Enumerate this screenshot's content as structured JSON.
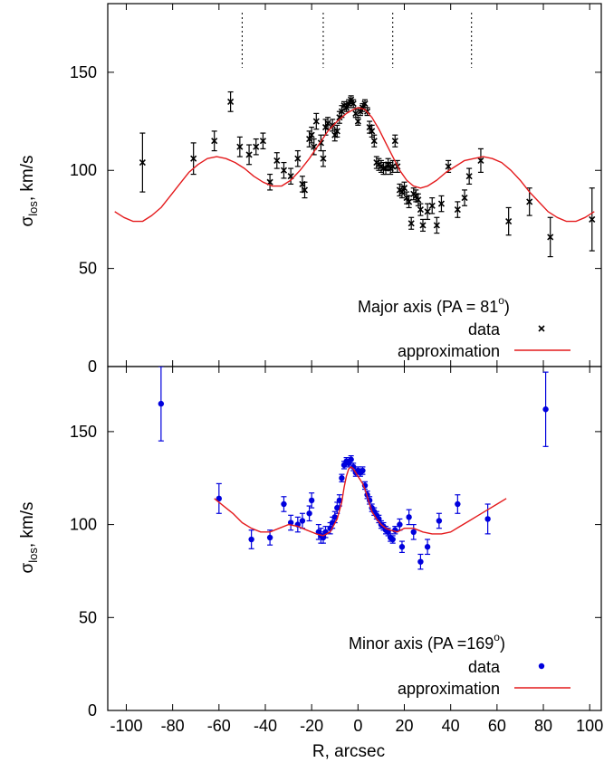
{
  "chart_data": [
    {
      "type": "scatter",
      "panel": "top",
      "title": "",
      "xlabel": "",
      "ylabel": "σ_los,  km/s",
      "xlim": [
        -108,
        105
      ],
      "ylim": [
        0,
        185
      ],
      "yticks": [
        "0",
        "50",
        "100",
        "150"
      ],
      "grid": false,
      "legend": {
        "position": "bottom-right",
        "title": "Major axis (PA = 81",
        "title_sup": "o",
        "title_end": ")",
        "entries": [
          "data",
          "approximation"
        ]
      },
      "vertical_dotted_lines_x": [
        -50,
        -15,
        15,
        49
      ],
      "data_color": "#000000",
      "model_color": "#e41a1c",
      "series": [
        {
          "name": "data",
          "marker": "cross",
          "points": [
            [
              -93,
              104,
              15
            ],
            [
              -71,
              106,
              8
            ],
            [
              -62,
              115,
              5
            ],
            [
              -55,
              135,
              5
            ],
            [
              -51,
              112,
              5
            ],
            [
              -47,
              108,
              5
            ],
            [
              -44,
              112,
              4
            ],
            [
              -41,
              115,
              4
            ],
            [
              -38,
              94,
              4
            ],
            [
              -35,
              105,
              4
            ],
            [
              -32,
              100,
              4
            ],
            [
              -29,
              97,
              4
            ],
            [
              -26,
              106,
              4
            ],
            [
              -24,
              93,
              4
            ],
            [
              -23,
              90,
              4
            ],
            [
              -21,
              116,
              4
            ],
            [
              -20,
              118,
              4
            ],
            [
              -19,
              112,
              4
            ],
            [
              -18,
              125,
              4
            ],
            [
              -16,
              114,
              4
            ],
            [
              -15,
              106,
              4
            ],
            [
              -14,
              122,
              4
            ],
            [
              -13,
              124,
              3
            ],
            [
              -11,
              123,
              3
            ],
            [
              -10,
              118,
              3
            ],
            [
              -9,
              120,
              3
            ],
            [
              -8,
              127,
              3
            ],
            [
              -7,
              130,
              3
            ],
            [
              -6,
              133,
              2
            ],
            [
              -5,
              132,
              2
            ],
            [
              -4,
              134,
              2
            ],
            [
              -3,
              136,
              2
            ],
            [
              -2,
              134,
              2
            ],
            [
              -1,
              129,
              2
            ],
            [
              0,
              125,
              2
            ],
            [
              1,
              130,
              2
            ],
            [
              2,
              132,
              2
            ],
            [
              3,
              134,
              2
            ],
            [
              4,
              130,
              2
            ],
            [
              5,
              122,
              3
            ],
            [
              6,
              120,
              3
            ],
            [
              7,
              115,
              3
            ],
            [
              8,
              104,
              3
            ],
            [
              9,
              103,
              3
            ],
            [
              10,
              102,
              3
            ],
            [
              11,
              101,
              3
            ],
            [
              12,
              101,
              3
            ],
            [
              13,
              103,
              3
            ],
            [
              14,
              101,
              3
            ],
            [
              15,
              102,
              3
            ],
            [
              16,
              115,
              3
            ],
            [
              17,
              102,
              3
            ],
            [
              18,
              90,
              3
            ],
            [
              19,
              89,
              3
            ],
            [
              20,
              91,
              3
            ],
            [
              21,
              86,
              3
            ],
            [
              22,
              84,
              3
            ],
            [
              23,
              73,
              3
            ],
            [
              24,
              88,
              3
            ],
            [
              25,
              87,
              3
            ],
            [
              26,
              85,
              3
            ],
            [
              27,
              80,
              3
            ],
            [
              28,
              72,
              3
            ],
            [
              30,
              79,
              4
            ],
            [
              32,
              82,
              4
            ],
            [
              34,
              72,
              4
            ],
            [
              36,
              83,
              4
            ],
            [
              39,
              102,
              3
            ],
            [
              43,
              80,
              4
            ],
            [
              46,
              86,
              4
            ],
            [
              48,
              97,
              4
            ],
            [
              53,
              105,
              6
            ],
            [
              65,
              74,
              7
            ],
            [
              74,
              84,
              7
            ],
            [
              83,
              66,
              10
            ],
            [
              101,
              75,
              16
            ]
          ]
        },
        {
          "name": "approximation",
          "line": true,
          "points": [
            [
              -105,
              79
            ],
            [
              -101,
              76
            ],
            [
              -97,
              74
            ],
            [
              -93,
              74
            ],
            [
              -89,
              77
            ],
            [
              -85,
              81
            ],
            [
              -81,
              87
            ],
            [
              -77,
              93
            ],
            [
              -73,
              99
            ],
            [
              -69,
              103
            ],
            [
              -65,
              106
            ],
            [
              -61,
              107
            ],
            [
              -57,
              106
            ],
            [
              -53,
              104
            ],
            [
              -49,
              101
            ],
            [
              -45,
              97
            ],
            [
              -41,
              94
            ],
            [
              -37,
              92
            ],
            [
              -33,
              92
            ],
            [
              -29,
              95
            ],
            [
              -25,
              100
            ],
            [
              -21,
              106
            ],
            [
              -17,
              113
            ],
            [
              -13,
              120
            ],
            [
              -9,
              125
            ],
            [
              -5,
              129
            ],
            [
              -2,
              131
            ],
            [
              0,
              132
            ],
            [
              3,
              131
            ],
            [
              6,
              127
            ],
            [
              9,
              121
            ],
            [
              12,
              114
            ],
            [
              15,
              107
            ],
            [
              18,
              100
            ],
            [
              21,
              95
            ],
            [
              24,
              92
            ],
            [
              27,
              91
            ],
            [
              30,
              92
            ],
            [
              34,
              95
            ],
            [
              38,
              99
            ],
            [
              42,
              102
            ],
            [
              46,
              105
            ],
            [
              50,
              106
            ],
            [
              54,
              107
            ],
            [
              58,
              106
            ],
            [
              62,
              104
            ],
            [
              66,
              100
            ],
            [
              70,
              95
            ],
            [
              74,
              89
            ],
            [
              78,
              84
            ],
            [
              82,
              79
            ],
            [
              86,
              76
            ],
            [
              90,
              74
            ],
            [
              94,
              74
            ],
            [
              98,
              76
            ],
            [
              102,
              79
            ]
          ]
        }
      ]
    },
    {
      "type": "scatter",
      "panel": "bottom",
      "title": "",
      "xlabel": "R, arcsec",
      "ylabel": "σ_los,  km/s",
      "xlim": [
        -108,
        105
      ],
      "ylim": [
        0,
        185
      ],
      "xticks": [
        "-100",
        "-80",
        "-60",
        "-40",
        "-20",
        "0",
        "20",
        "40",
        "60",
        "80",
        "100"
      ],
      "yticks": [
        "0",
        "50",
        "100",
        "150"
      ],
      "grid": false,
      "legend": {
        "position": "bottom-right",
        "title": "Minor axis (PA =169",
        "title_sup": "o",
        "title_end": ")",
        "entries": [
          "data",
          "approximation"
        ]
      },
      "data_color": "#0000dd",
      "model_color": "#e41a1c",
      "series": [
        {
          "name": "data",
          "marker": "dot",
          "points": [
            [
              -85,
              165,
              20
            ],
            [
              -60,
              114,
              8
            ],
            [
              -46,
              92,
              5
            ],
            [
              -38,
              93,
              4
            ],
            [
              -32,
              111,
              4
            ],
            [
              -29,
              101,
              4
            ],
            [
              -26,
              100,
              4
            ],
            [
              -24,
              102,
              4
            ],
            [
              -21,
              106,
              4
            ],
            [
              -20,
              113,
              4
            ],
            [
              -17,
              96,
              4
            ],
            [
              -16,
              94,
              4
            ],
            [
              -15,
              93,
              3
            ],
            [
              -14,
              96,
              3
            ],
            [
              -12,
              98,
              3
            ],
            [
              -11,
              101,
              3
            ],
            [
              -10,
              104,
              3
            ],
            [
              -9,
              109,
              3
            ],
            [
              -8,
              113,
              3
            ],
            [
              -7,
              125,
              2
            ],
            [
              -6,
              132,
              2
            ],
            [
              -5,
              134,
              2
            ],
            [
              -4,
              133,
              2
            ],
            [
              -3,
              135,
              2
            ],
            [
              -2,
              131,
              2
            ],
            [
              -1,
              128,
              2
            ],
            [
              0,
              129,
              2
            ],
            [
              1,
              128,
              2
            ],
            [
              2,
              129,
              2
            ],
            [
              3,
              121,
              2
            ],
            [
              4,
              116,
              2
            ],
            [
              5,
              113,
              2
            ],
            [
              6,
              109,
              2
            ],
            [
              7,
              107,
              2
            ],
            [
              8,
              105,
              2
            ],
            [
              9,
              103,
              2
            ],
            [
              10,
              100,
              2
            ],
            [
              11,
              99,
              2
            ],
            [
              12,
              97,
              2
            ],
            [
              13,
              96,
              2
            ],
            [
              14,
              93,
              2
            ],
            [
              15,
              92,
              2
            ],
            [
              16,
              97,
              2
            ],
            [
              18,
              100,
              3
            ],
            [
              19,
              88,
              3
            ],
            [
              22,
              104,
              4
            ],
            [
              24,
              96,
              4
            ],
            [
              27,
              80,
              4
            ],
            [
              30,
              88,
              4
            ],
            [
              35,
              102,
              4
            ],
            [
              43,
              111,
              5
            ],
            [
              56,
              103,
              8
            ],
            [
              81,
              162,
              20
            ]
          ]
        },
        {
          "name": "approximation",
          "line": true,
          "points": [
            [
              -62,
              114
            ],
            [
              -58,
              110
            ],
            [
              -54,
              106
            ],
            [
              -50,
              101
            ],
            [
              -46,
              98
            ],
            [
              -42,
              96
            ],
            [
              -38,
              96
            ],
            [
              -34,
              98
            ],
            [
              -30,
              100
            ],
            [
              -26,
              99
            ],
            [
              -22,
              97
            ],
            [
              -18,
              95
            ],
            [
              -15,
              94
            ],
            [
              -12,
              96
            ],
            [
              -9,
              103
            ],
            [
              -7,
              112
            ],
            [
              -6,
              120
            ],
            [
              -5,
              126
            ],
            [
              -4,
              130
            ],
            [
              -3,
              131
            ],
            [
              -2,
              130
            ],
            [
              -1,
              128
            ],
            [
              0,
              126
            ],
            [
              1,
              124
            ],
            [
              2,
              122
            ],
            [
              3,
              119
            ],
            [
              4,
              115
            ],
            [
              5,
              111
            ],
            [
              6,
              107
            ],
            [
              8,
              103
            ],
            [
              10,
              100
            ],
            [
              12,
              98
            ],
            [
              14,
              97
            ],
            [
              17,
              96
            ],
            [
              20,
              98
            ],
            [
              24,
              98
            ],
            [
              28,
              96
            ],
            [
              32,
              95
            ],
            [
              36,
              95
            ],
            [
              40,
              96
            ],
            [
              44,
              99
            ],
            [
              48,
              102
            ],
            [
              52,
              105
            ],
            [
              56,
              108
            ],
            [
              60,
              111
            ],
            [
              64,
              114
            ]
          ]
        }
      ]
    }
  ]
}
